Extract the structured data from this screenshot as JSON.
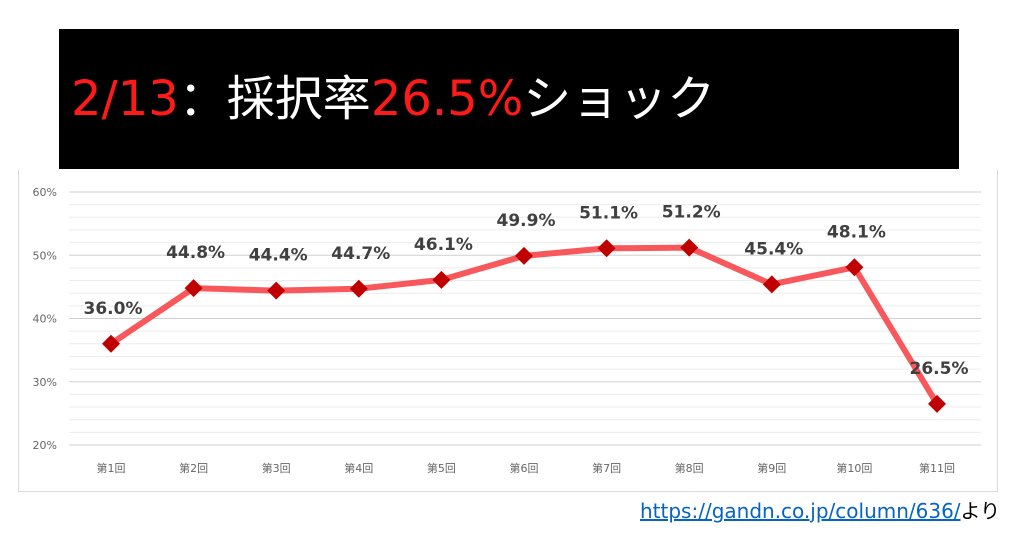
{
  "title": {
    "date": "2/13",
    "separator": "：採択率",
    "rate": "26.5%",
    "suffix": "ショック"
  },
  "source": {
    "url": "https://gandn.co.jp/column/636/",
    "suffix": "より"
  },
  "chart_data": {
    "type": "line",
    "title": "",
    "xlabel": "",
    "ylabel": "",
    "categories": [
      "第1回",
      "第2回",
      "第3回",
      "第4回",
      "第5回",
      "第6回",
      "第7回",
      "第8回",
      "第9回",
      "第10回",
      "第11回"
    ],
    "series": [
      {
        "values": [
          36.0,
          44.8,
          44.4,
          44.7,
          46.1,
          49.9,
          51.1,
          51.2,
          45.4,
          48.1,
          26.5
        ],
        "labels": [
          "36.0%",
          "44.8%",
          "44.4%",
          "44.7%",
          "46.1%",
          "49.9%",
          "51.1%",
          "51.2%",
          "45.4%",
          "48.1%",
          "26.5%"
        ]
      }
    ],
    "ylim": [
      20,
      60
    ],
    "yticks": [
      "20%",
      "30%",
      "40%",
      "50%",
      "60%"
    ],
    "grid": true,
    "line_color": "#f8585b",
    "marker_color": "#c00000"
  }
}
